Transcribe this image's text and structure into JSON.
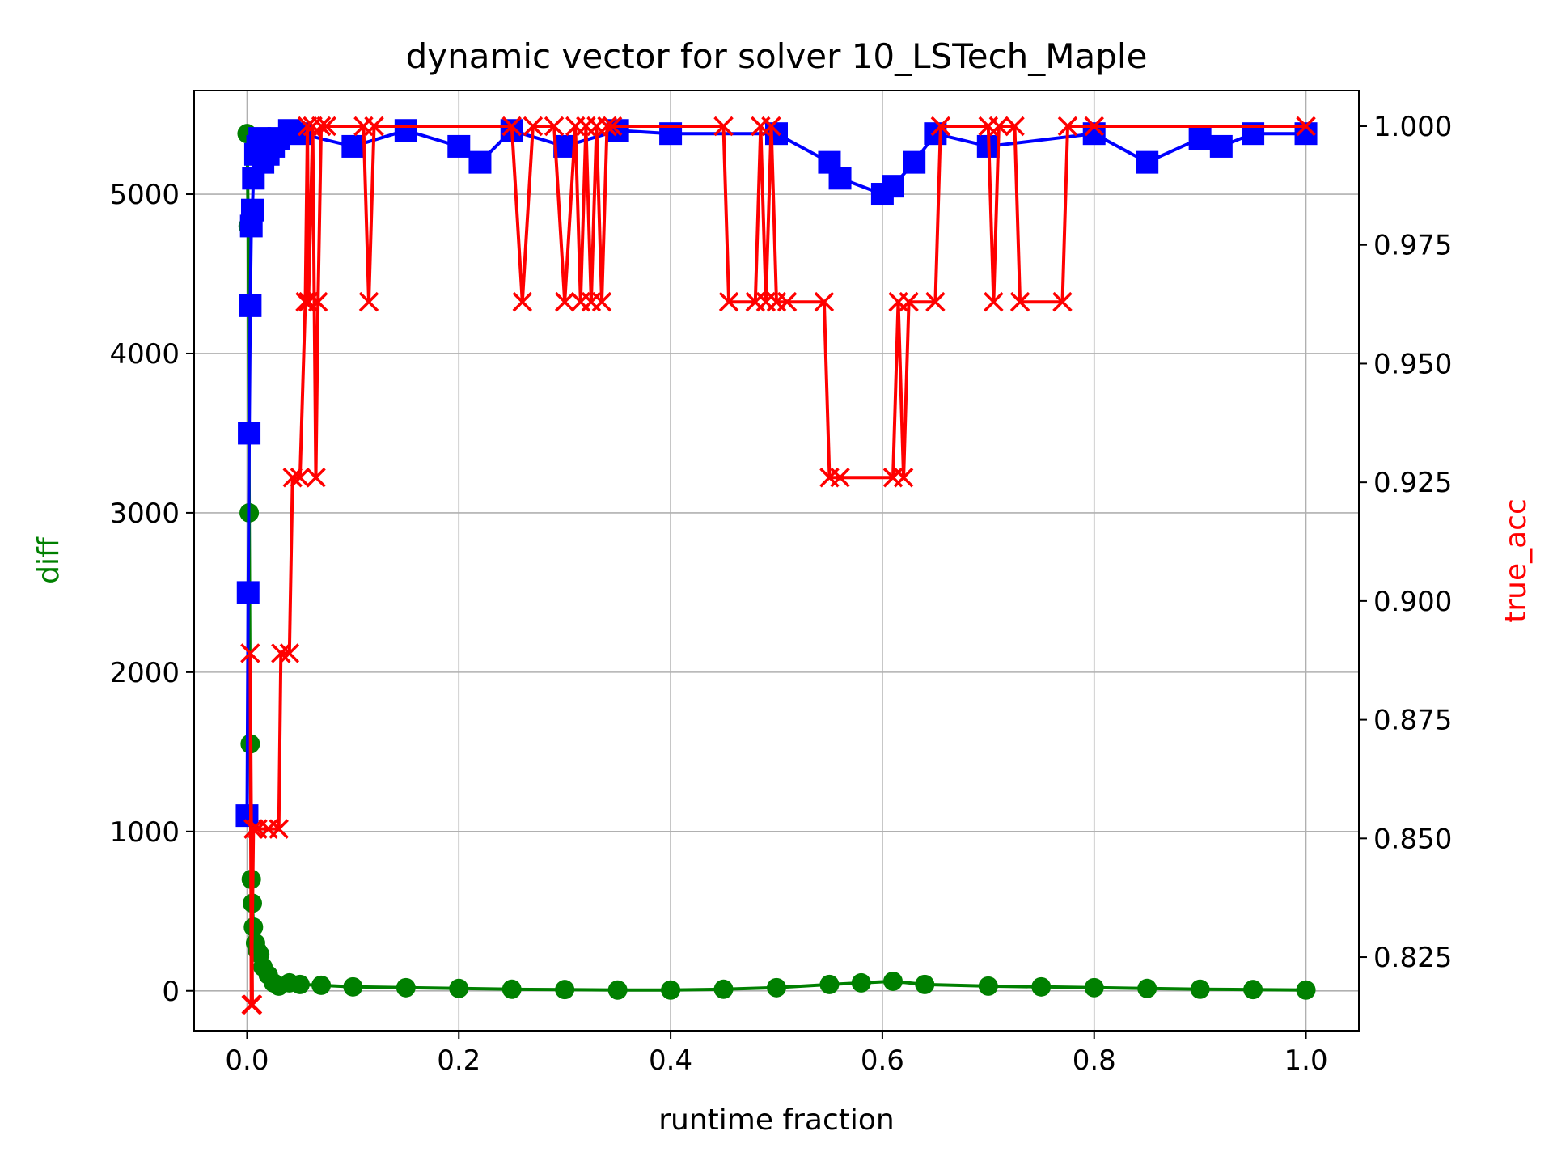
{
  "chart_data": {
    "type": "line",
    "title": "dynamic vector for solver 10_LSTech_Maple",
    "xlabel": "runtime fraction",
    "ylabel_left": "diff",
    "ylabel_right": "true_acc",
    "xlim": [
      -0.05,
      1.05
    ],
    "ylim_left": [
      -250,
      5650
    ],
    "ylim_right": [
      0.8095,
      1.0075
    ],
    "x_ticks": [
      0.0,
      0.2,
      0.4,
      0.6,
      0.8,
      1.0
    ],
    "x_tick_labels": [
      "0.0",
      "0.2",
      "0.4",
      "0.6",
      "0.8",
      "1.0"
    ],
    "left_ticks": [
      0,
      1000,
      2000,
      3000,
      4000,
      5000
    ],
    "left_tick_labels": [
      "0",
      "1000",
      "2000",
      "3000",
      "4000",
      "5000"
    ],
    "right_ticks": [
      0.825,
      0.85,
      0.875,
      0.9,
      0.925,
      0.95,
      0.975,
      1.0
    ],
    "right_tick_labels": [
      "0.825",
      "0.850",
      "0.875",
      "0.900",
      "0.925",
      "0.950",
      "0.975",
      "1.000"
    ],
    "grid": true,
    "colors": {
      "diff": "#008000",
      "total": "#0000ff",
      "true_acc": "#ff0000",
      "axis_text": "#000000",
      "grid": "#b0b0b0"
    },
    "series": [
      {
        "axis": "left",
        "marker": "circle",
        "color": "#008000",
        "x": [
          0.0,
          0.001,
          0.002,
          0.003,
          0.004,
          0.005,
          0.006,
          0.008,
          0.01,
          0.012,
          0.015,
          0.02,
          0.025,
          0.03,
          0.04,
          0.05,
          0.07,
          0.1,
          0.15,
          0.2,
          0.25,
          0.3,
          0.35,
          0.4,
          0.45,
          0.5,
          0.55,
          0.58,
          0.61,
          0.64,
          0.7,
          0.75,
          0.8,
          0.85,
          0.9,
          0.95,
          1.0
        ],
        "y": [
          5380,
          4800,
          3000,
          1550,
          700,
          550,
          400,
          300,
          250,
          230,
          150,
          100,
          50,
          30,
          50,
          40,
          35,
          25,
          20,
          15,
          10,
          8,
          5,
          5,
          10,
          20,
          40,
          50,
          60,
          40,
          30,
          25,
          20,
          15,
          10,
          8,
          5
        ]
      },
      {
        "axis": "left",
        "marker": "square",
        "color": "#0000ff",
        "x": [
          0.0,
          0.001,
          0.002,
          0.003,
          0.004,
          0.005,
          0.006,
          0.008,
          0.01,
          0.012,
          0.015,
          0.02,
          0.025,
          0.03,
          0.04,
          0.05,
          0.1,
          0.15,
          0.2,
          0.22,
          0.25,
          0.3,
          0.35,
          0.4,
          0.5,
          0.55,
          0.56,
          0.6,
          0.61,
          0.63,
          0.65,
          0.7,
          0.8,
          0.85,
          0.9,
          0.92,
          0.95,
          1.0
        ],
        "y": [
          1100,
          2500,
          3500,
          4300,
          4800,
          4900,
          5100,
          5250,
          5300,
          5350,
          5200,
          5250,
          5300,
          5350,
          5400,
          5380,
          5300,
          5400,
          5300,
          5200,
          5400,
          5300,
          5400,
          5380,
          5380,
          5200,
          5100,
          5000,
          5050,
          5200,
          5380,
          5300,
          5380,
          5200,
          5350,
          5300,
          5380,
          5380
        ]
      },
      {
        "axis": "right",
        "marker": "x",
        "color": "#ff0000",
        "x": [
          0.005,
          0.003,
          0.004,
          0.006,
          0.01,
          0.02,
          0.03,
          0.032,
          0.04,
          0.043,
          0.05,
          0.055,
          0.057,
          0.058,
          0.062,
          0.065,
          0.067,
          0.07,
          0.075,
          0.11,
          0.115,
          0.12,
          0.25,
          0.26,
          0.27,
          0.29,
          0.3,
          0.31,
          0.315,
          0.32,
          0.325,
          0.33,
          0.335,
          0.34,
          0.345,
          0.45,
          0.455,
          0.48,
          0.485,
          0.49,
          0.495,
          0.5,
          0.51,
          0.545,
          0.55,
          0.56,
          0.61,
          0.615,
          0.62,
          0.625,
          0.65,
          0.655,
          0.7,
          0.705,
          0.71,
          0.725,
          0.73,
          0.77,
          0.775,
          0.8,
          1.0
        ],
        "y": [
          0.815,
          0.889,
          0.815,
          0.852,
          0.852,
          0.852,
          0.852,
          0.889,
          0.889,
          0.926,
          0.926,
          0.963,
          1.0,
          0.963,
          1.0,
          0.926,
          0.963,
          1.0,
          1.0,
          1.0,
          0.963,
          1.0,
          1.0,
          0.963,
          1.0,
          1.0,
          0.963,
          1.0,
          0.963,
          1.0,
          0.963,
          1.0,
          0.963,
          1.0,
          1.0,
          1.0,
          0.963,
          0.963,
          1.0,
          0.963,
          1.0,
          0.963,
          0.963,
          0.963,
          0.926,
          0.926,
          0.926,
          0.963,
          0.926,
          0.963,
          0.963,
          1.0,
          1.0,
          0.963,
          1.0,
          1.0,
          0.963,
          0.963,
          1.0,
          1.0,
          1.0
        ]
      }
    ]
  }
}
